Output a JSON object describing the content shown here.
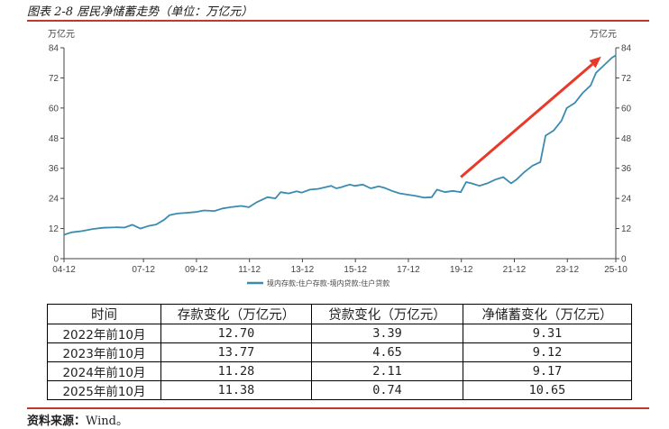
{
  "figure": {
    "title": "图表 2-8  居民净储蓄走势（单位：万亿元）",
    "source_label": "资料来源：",
    "source_value": "Wind。"
  },
  "chart_data": {
    "type": "line",
    "unit_left": "万亿元",
    "unit_right": "万亿元",
    "ylim": [
      0,
      84
    ],
    "yticks": [
      0,
      12,
      24,
      36,
      48,
      60,
      72,
      84
    ],
    "xticks": [
      "04-12",
      "07-12",
      "09-12",
      "11-12",
      "13-12",
      "15-12",
      "17-12",
      "19-12",
      "21-12",
      "23-12",
      "25-10"
    ],
    "xtick_positions": [
      2004.92,
      2007.92,
      2009.92,
      2011.92,
      2013.92,
      2015.92,
      2017.92,
      2019.92,
      2021.92,
      2023.92,
      2025.75
    ],
    "series": [
      {
        "name": "境内存款:住户存款-境内贷款:住户贷款",
        "color": "#3a8bb0",
        "x": [
          2004.92,
          2005.2,
          2005.6,
          2006.0,
          2006.4,
          2006.9,
          2007.2,
          2007.5,
          2007.8,
          2008.1,
          2008.4,
          2008.7,
          2008.9,
          2009.2,
          2009.6,
          2009.9,
          2010.2,
          2010.6,
          2010.9,
          2011.2,
          2011.6,
          2011.9,
          2012.2,
          2012.6,
          2012.9,
          2013.1,
          2013.4,
          2013.7,
          2013.9,
          2014.2,
          2014.5,
          2014.8,
          2015.0,
          2015.2,
          2015.4,
          2015.7,
          2015.9,
          2016.2,
          2016.5,
          2016.8,
          2017.0,
          2017.3,
          2017.6,
          2017.9,
          2018.2,
          2018.5,
          2018.8,
          2019.0,
          2019.3,
          2019.6,
          2019.9,
          2020.1,
          2020.3,
          2020.6,
          2020.9,
          2021.2,
          2021.5,
          2021.8,
          2022.0,
          2022.3,
          2022.6,
          2022.9,
          2023.1,
          2023.4,
          2023.7,
          2023.9,
          2024.2,
          2024.5,
          2024.8,
          2025.0,
          2025.3,
          2025.6,
          2025.75
        ],
        "values": [
          9.5,
          10.5,
          11.0,
          11.8,
          12.3,
          12.5,
          12.4,
          13.5,
          12.0,
          13.0,
          13.6,
          15.5,
          17.3,
          18.0,
          18.3,
          18.6,
          19.2,
          19.0,
          20.0,
          20.5,
          21.0,
          20.5,
          22.5,
          24.5,
          24.0,
          26.5,
          26.0,
          26.8,
          26.3,
          27.5,
          27.8,
          28.5,
          29.0,
          28.0,
          28.5,
          29.5,
          29.0,
          29.5,
          28.0,
          28.8,
          28.3,
          27.0,
          26.0,
          25.5,
          25.0,
          24.3,
          24.5,
          27.5,
          26.5,
          27.0,
          26.5,
          30.5,
          30.0,
          29.0,
          30.0,
          31.5,
          32.5,
          30.0,
          31.5,
          34.5,
          37.0,
          38.5,
          49.0,
          51.0,
          55.0,
          60.0,
          62.0,
          66.0,
          69.0,
          74.0,
          77.0,
          80.0,
          81.0
        ]
      }
    ],
    "arrow": {
      "from": [
        2019.9,
        32.5
      ],
      "to": [
        2025.2,
        80.5
      ],
      "color": "#e8392a"
    }
  },
  "table": {
    "headers": [
      "时间",
      "存款变化（万亿元）",
      "贷款变化（万亿元）",
      "净储蓄变化（万亿元）"
    ],
    "rows": [
      [
        "2022年前10月",
        "12.70",
        "3.39",
        "9.31"
      ],
      [
        "2023年前10月",
        "13.77",
        "4.65",
        "9.12"
      ],
      [
        "2024年前10月",
        "11.28",
        "2.11",
        "9.17"
      ],
      [
        "2025年前10月",
        "11.38",
        "0.74",
        "10.65"
      ]
    ]
  }
}
